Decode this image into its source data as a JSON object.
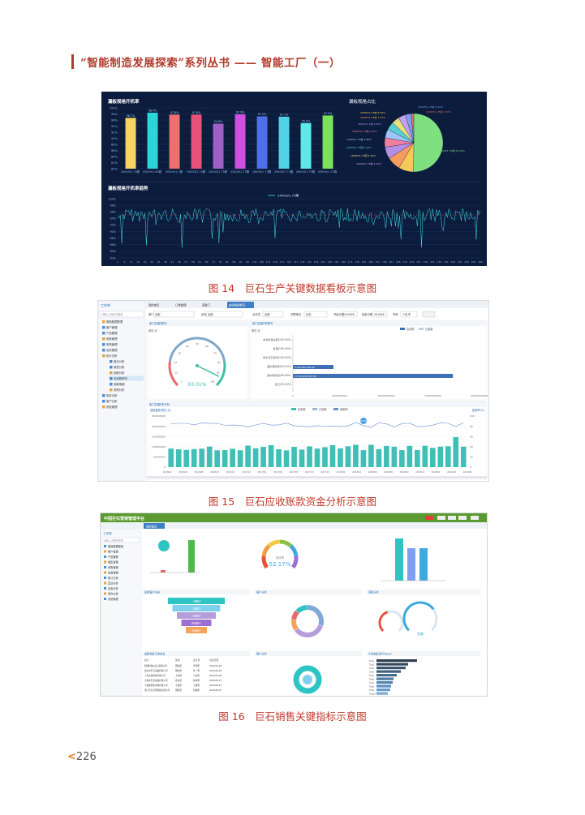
{
  "header": {
    "title": "“智能制造发展探索”系列丛书 —— 智能工厂（一）"
  },
  "fig14": {
    "caption": "图 14　巨石生产关键数据看板示意图",
    "bar_title": "漏板规格开机率",
    "pie_title": "漏板规格占比",
    "trend_title": "漏板规格开机率趋势",
    "trend_legend": "2400H/1.75峰",
    "bar_labels": [
      "2400H/1.75峰",
      "4300H/1.65峰",
      "4000H/1.7峰",
      "4300H/1.75峰",
      "2400H/1.75峰",
      "4300H/1.75峰",
      "1600H/1.75圆",
      "4300H/1.75圆",
      "4000H/1.75峰",
      "4300H/1.75峰"
    ],
    "bar_values": [
      96.7,
      98.4,
      97.8,
      97.8,
      94.8,
      97.9,
      97.2,
      97.1,
      95.0,
      97.5
    ],
    "bar_colors": [
      "#f7d560",
      "#2dd4d8",
      "#ef6e6e",
      "#e8527a",
      "#a05fc7",
      "#d04fe0",
      "#4f6fe8",
      "#4fd2e8",
      "#5fe8e8",
      "#7ae25a"
    ],
    "ylim": [
      80,
      100
    ],
    "yticks": [
      "100%",
      "98%",
      "96%",
      "94%",
      "92%",
      "90%",
      "88%",
      "86%",
      "84%",
      "82%",
      "80%"
    ],
    "pie_values": [
      50.2,
      8.3,
      7.5,
      6.5,
      5.3,
      4.8,
      4.4,
      4.2,
      4.1,
      3.2,
      1.5
    ],
    "pie_colors": [
      "#7ee07e",
      "#f7c85a",
      "#f49d5e",
      "#b58ee8",
      "#f07f9e",
      "#9fc5f8",
      "#5ad0d6",
      "#e8e07a",
      "#c6a0f0",
      "#7f9ff0",
      "#e06a6a"
    ],
    "pie_labels": [
      "2400H/1.75峰 50.20%",
      "4300H/1.75峰 8.30%",
      "4300H/1.65峰 7.50%",
      "4000H/1.7峰 6.50%",
      "4300H/1.75峰 5.30%",
      "2400H/1.75峰 4.80%",
      "4300H/1.75圆 4.40%",
      "1600H/1.75圆 4.20%",
      "4300H/1.75峰 4.10%",
      "4000H/1.75峰 3.20%",
      "2400H/1.75峰 1.50%"
    ],
    "trend_yticks": [
      "100%",
      "98%",
      "96%",
      "94%",
      "92%",
      "90%",
      "88%",
      "86%",
      "84%",
      "82%"
    ],
    "trend_xticks": [
      "1",
      "6",
      "11",
      "16",
      "21",
      "26",
      "31",
      "36",
      "41",
      "46",
      "51",
      "56",
      "61",
      "66",
      "71",
      "76",
      "81",
      "86",
      "91",
      "96",
      "101",
      "106",
      "111",
      "116",
      "121",
      "126",
      "131",
      "136",
      "141",
      "146",
      "151",
      "156",
      "161",
      "166",
      "171",
      "176",
      "181",
      "186",
      "191",
      "196",
      "201",
      "206",
      "211",
      "216",
      "221",
      "226",
      "231",
      "236",
      "241",
      "246",
      "251",
      "256",
      "261",
      "266"
    ]
  },
  "fig15": {
    "caption": "图 15　巨石应收账款资金分析示意图",
    "sidebar_title": "工作单",
    "sidebar_search": "请输入关键字搜索",
    "sidebar_items": [
      "基础数据配置",
      "客户管理",
      "产品管理",
      "销售管理",
      "采购管理",
      "应收管理",
      "统计分析",
      "营业分析",
      "销售分析",
      "回款分析",
      "应收款情况",
      "回款明细",
      "采购分析",
      "库存分析",
      "客户分析",
      "系统管理"
    ],
    "tabs": [
      "我的首页",
      "订单管理",
      "回款门",
      "应收账款情况"
    ],
    "filter": {
      "dept": "部门",
      "all": "全部",
      "area": "区域",
      "customer": "业务员",
      "entity": "开票单位",
      "company": "巨石",
      "start": "开始日期",
      "start_val": "201906",
      "end": "结束日期",
      "end_val": "201906",
      "currency": "币种",
      "currency_val": "人民币"
    },
    "panel1": "部门回款情况",
    "panel2": "部门回款率情况",
    "panel3": "部门回款率分析",
    "unit": "单位:元",
    "gauge_value": "93.01%",
    "gauge_ticks": [
      "0",
      "10",
      "20",
      "30",
      "40",
      "50",
      "60",
      "70",
      "80",
      "90",
      "100"
    ],
    "hbar_legend": [
      "应收款",
      "已回款"
    ],
    "hbar_rows": [
      "新材料事业部(100.00%)",
      "集团(100.00%)",
      "桐乡巨石贸易(100.00%)",
      "国内销售部(93.52%)",
      "国内销售部(96.90%)",
      "巨石(78.53%)"
    ],
    "hbar_values": [
      0,
      0,
      0,
      4342807394,
      17143460567,
      0
    ],
    "hbar_value_labels": [
      "",
      "",
      "",
      "4,342,807,394.00",
      "17,143,460,567.00",
      ""
    ],
    "hbar_xticks": [
      "0",
      "5000000000",
      "10000000000",
      "15000000000",
      "20000000000"
    ],
    "combo_legend": [
      "应收款",
      "已回款",
      "回款率"
    ],
    "combo_left": "回款金额(单位:元)",
    "combo_right": "回款率(%)",
    "combo_yticks": [
      "250000000",
      "200000000",
      "150000000",
      "100000000",
      "50000000",
      "0"
    ],
    "combo_rticks": [
      "100",
      "80",
      "60",
      "40",
      "20",
      "0"
    ],
    "combo_xticks": [
      "201604",
      "201606",
      "201608",
      "201610",
      "201612",
      "201702",
      "201704",
      "201706",
      "201708",
      "201710",
      "201712",
      "201802",
      "201804",
      "201806",
      "201808",
      "201810",
      "201812",
      "201902",
      "201904",
      "201906"
    ],
    "combo_tooltip": "93.01"
  },
  "fig16": {
    "caption": "图 16　巨石销售关键指标示意图",
    "brand": "中国巨石营销管理平台",
    "tab": "我的首页",
    "sidebar_title": "工作单",
    "sidebar_search": "请输入关键字搜索",
    "sidebar_items": [
      "基础数据配置",
      "客户管理",
      "产品管理",
      "销售管理",
      "采购管理",
      "应收管理",
      "统计分析",
      "营业分析",
      "应收分析",
      "库存分析",
      "系统管理"
    ],
    "completion": "完成率",
    "completion_value": "52.17%",
    "gauge_text": "金额",
    "panels": [
      "渠道客户分布",
      "客户分析",
      "回款分析",
      "最新销售订单信息",
      "客户分析",
      "产品销售排行Top10"
    ],
    "funnel": [
      "一级客户",
      "二级客户",
      "三级客户",
      "四级客户",
      "五级客户"
    ],
    "orders_headers": [
      "客户",
      "区域",
      "业务员",
      "创建日期"
    ],
    "orders": [
      [
        "耐特科技(远东)有限公司",
        "国际部",
        "李伟明",
        "2019-06-28"
      ],
      [
        "嘉兴市巨石机械有限公司",
        "国内部",
        "张一明",
        "2019-06-28"
      ],
      [
        "上海石特科技有限公司",
        "上海部",
        "王亮明",
        "2019-06-28"
      ],
      [
        "无锡丰汇纺织品有限公司",
        "嘉兴部",
        "赵海明",
        "2019-06-27"
      ],
      [
        "宁波欧亚新材料有限公司",
        "宁波部",
        "王建明",
        "2019-06-27"
      ],
      [
        "浙江巨石纤维科技有限公司",
        "国际部",
        "刘建明",
        "2019-06-27"
      ]
    ],
    "top10": [
      "Top1",
      "Top2",
      "Top3",
      "Top4",
      "Top5",
      "Top6",
      "Top7",
      "Top8",
      "Top9",
      "Top10"
    ],
    "top10_values": [
      100,
      78,
      72,
      60,
      50,
      42,
      40,
      36,
      34,
      28
    ]
  },
  "page_number": "226"
}
